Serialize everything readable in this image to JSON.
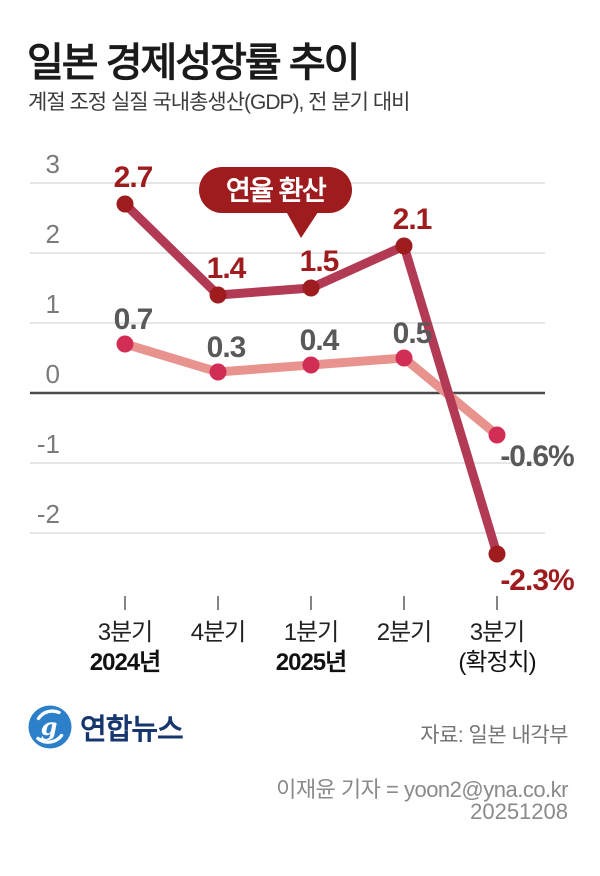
{
  "header": {
    "title": "일본 경제성장률 추이",
    "subtitle": "계절 조정 실질 국내총생산(GDP), 전 분기 대비"
  },
  "chart_data": {
    "type": "line",
    "categories": [
      "3분기",
      "4분기",
      "1분기",
      "2분기",
      "3분기"
    ],
    "category_sublabels": [
      "2024년",
      "",
      "2025년",
      "",
      "(확정치)"
    ],
    "y_ticks": [
      3,
      2,
      1,
      0,
      -1,
      -2
    ],
    "ylim": [
      -2.6,
      3.3
    ],
    "grid": true,
    "legend_position": "none",
    "annotation": "연율 환산",
    "series": [
      {
        "name": "연율 환산",
        "values": [
          2.7,
          1.4,
          1.5,
          2.1,
          -2.3
        ],
        "point_labels": [
          "2.7",
          "1.4",
          "1.5",
          "2.1",
          "-2.3%"
        ],
        "line_color": "#b23a55",
        "dot_color": "#9e1b1e",
        "label_color": "#9e1b1e"
      },
      {
        "name": "전 분기 대비",
        "values": [
          0.7,
          0.3,
          0.4,
          0.5,
          -0.6
        ],
        "point_labels": [
          "0.7",
          "0.3",
          "0.4",
          "0.5",
          "-0.6%"
        ],
        "line_color": "#e9938f",
        "dot_color": "#d22d55",
        "label_color": "#595959"
      }
    ]
  },
  "colors": {
    "badge_bg": "#9e1b1e",
    "badge_text": "#ffffff",
    "grid_line": "#d6d6d6",
    "zero_line": "#4a4a4a",
    "y_label": "#7a7a7a",
    "x_label": "#222222",
    "tick": "#666666",
    "logo_blue": "#2b80c9"
  },
  "footer": {
    "logo_text": "연합뉴스",
    "source": "자료: 일본 내각부",
    "credit": "이재윤 기자 = yoon2@yna.co.kr",
    "date": "20251208"
  }
}
